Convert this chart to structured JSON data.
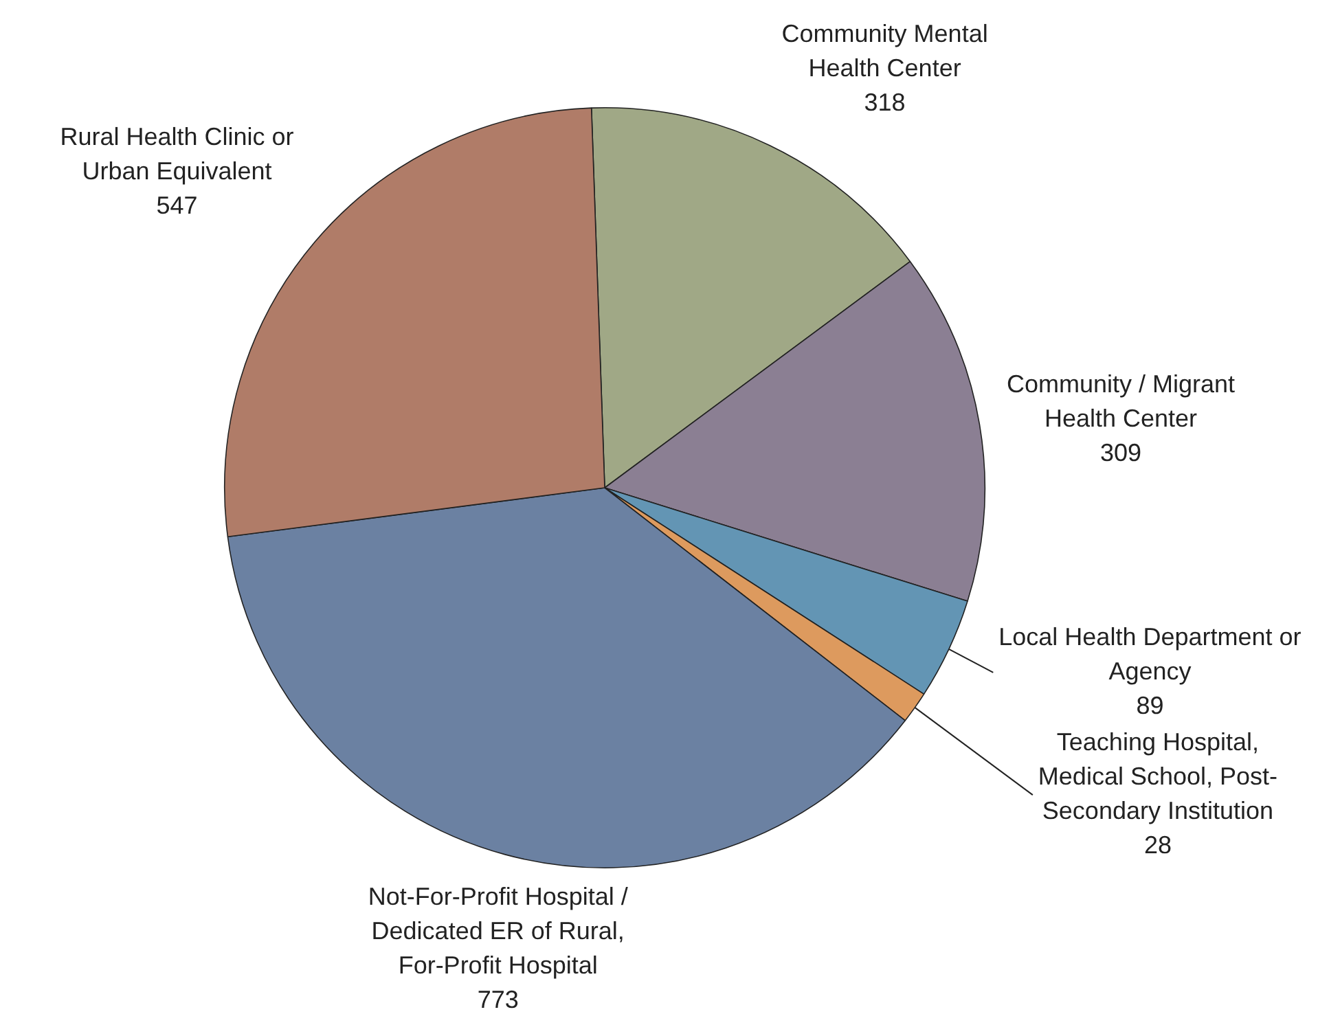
{
  "chart_data": {
    "type": "pie",
    "categories": [
      "Community Mental Health Center",
      "Community / Migrant Health Center",
      "Local Health Department or Agency",
      "Teaching Hospital, Medical School, Post-Secondary Institution",
      "Not-For-Profit Hospital / Dedicated ER of Rural, For-Profit Hospital",
      "Rural Health Clinic or Urban Equivalent"
    ],
    "values": [
      318,
      309,
      89,
      28,
      773,
      547
    ],
    "colors": [
      "#a0a886",
      "#8b7f93",
      "#6395b4",
      "#dd9a5e",
      "#6b81a2",
      "#b07c68"
    ],
    "data_labels": true,
    "legend": false
  }
}
